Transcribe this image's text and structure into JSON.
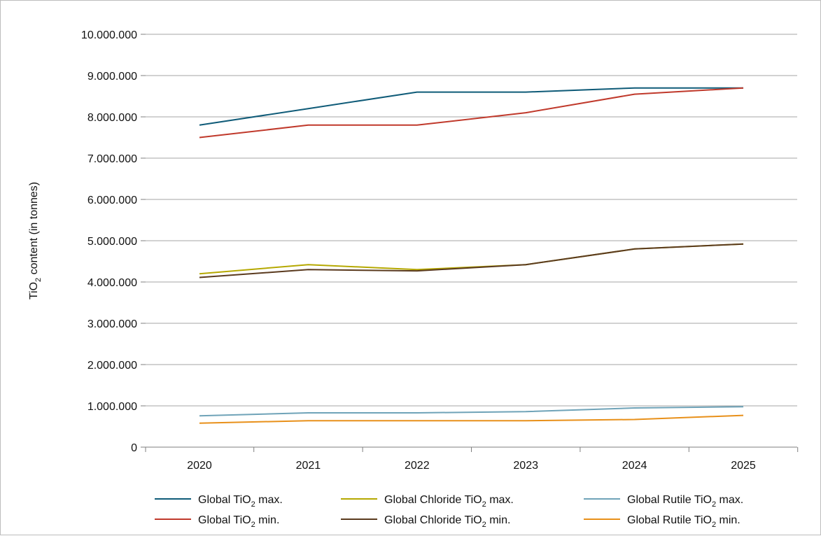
{
  "chart_data": {
    "type": "line",
    "ylabel": {
      "base": "TiO",
      "sub": "2",
      "rest": " content (in tonnes)"
    },
    "x": [
      "2020",
      "2021",
      "2022",
      "2023",
      "2024",
      "2025"
    ],
    "ylim": [
      0,
      10000000
    ],
    "yticks": [
      {
        "value": 0,
        "label": "0"
      },
      {
        "value": 1000000,
        "label": "1.000.000"
      },
      {
        "value": 2000000,
        "label": "2.000.000"
      },
      {
        "value": 3000000,
        "label": "3.000.000"
      },
      {
        "value": 4000000,
        "label": "4.000.000"
      },
      {
        "value": 5000000,
        "label": "5.000.000"
      },
      {
        "value": 6000000,
        "label": "6.000.000"
      },
      {
        "value": 7000000,
        "label": "7.000.000"
      },
      {
        "value": 8000000,
        "label": "8.000.000"
      },
      {
        "value": 9000000,
        "label": "9.000.000"
      },
      {
        "value": 10000000,
        "label": "10.000.000"
      }
    ],
    "grid": true,
    "legend_position": "bottom",
    "series": [
      {
        "id": "global-max",
        "name_pre": "Global TiO",
        "name_post": " max.",
        "color": "#0f5b78",
        "values": [
          7800000,
          8200000,
          8600000,
          8600000,
          8700000,
          8700000
        ]
      },
      {
        "id": "global-min",
        "name_pre": "Global TiO",
        "name_post": " min.",
        "color": "#c0392b",
        "values": [
          7500000,
          7800000,
          7800000,
          8100000,
          8550000,
          8700000
        ]
      },
      {
        "id": "chloride-max",
        "name_pre": "Global Chloride TiO",
        "name_post": " max.",
        "color": "#b5a800",
        "values": [
          4200000,
          4420000,
          4300000,
          4420000,
          4800000,
          4920000
        ]
      },
      {
        "id": "chloride-min",
        "name_pre": "Global Chloride TiO",
        "name_post": " min.",
        "color": "#5a3a1e",
        "values": [
          4110000,
          4300000,
          4270000,
          4420000,
          4800000,
          4920000
        ]
      },
      {
        "id": "rutile-max",
        "name_pre": "Global Rutile TiO",
        "name_post": " max.",
        "color": "#6fa3b8",
        "values": [
          760000,
          830000,
          830000,
          860000,
          950000,
          980000
        ]
      },
      {
        "id": "rutile-min",
        "name_pre": "Global Rutile TiO",
        "name_post": " min.",
        "color": "#e8901a",
        "values": [
          580000,
          640000,
          640000,
          640000,
          670000,
          770000
        ]
      }
    ],
    "legend_order": [
      "global-max",
      "chloride-max",
      "rutile-max",
      "global-min",
      "chloride-min",
      "rutile-min"
    ],
    "subscript": "2"
  }
}
